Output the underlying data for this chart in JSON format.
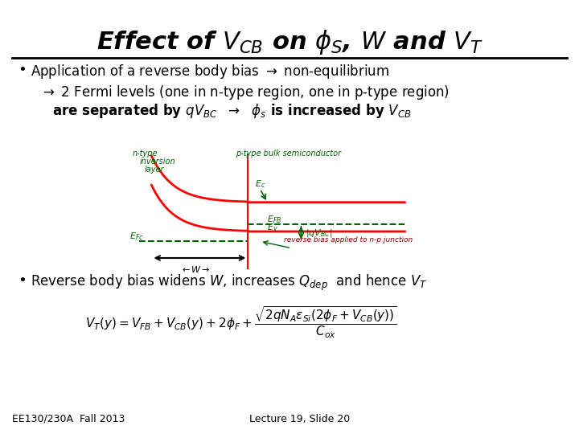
{
  "title": "Effect of $V_{CB}$ on $\\phi_S$, $W$ and $V_T$",
  "title_fontsize": 22,
  "bg_color": "#ffffff",
  "text_color": "#000000",
  "bullet1": "Application of a reverse body bias $\\rightarrow$ non-equilibrium",
  "bullet2": "$\\rightarrow$ 2 Fermi levels (one in n-type region, one in p-type region)",
  "bullet3": "are separated by $qV_{BC}$  $\\rightarrow$  $\\phi_s$ is increased by $V_{CB}$",
  "bullet4": "Reverse body bias widens $W$, increases $Q_{dep}$  and hence $V_T$",
  "formula": "$V_T(y) = V_{FB} + V_{CB}(y) + 2\\phi_F + \\dfrac{\\sqrt{2qN_A\\varepsilon_{Si}(2\\phi_F + V_{CB}(y))}}{C_{ox}}$",
  "footer_left": "EE130/230A  Fall 2013",
  "footer_right": "Lecture 19, Slide 20",
  "footer_fontsize": 9,
  "bullet_fontsize": 12,
  "formula_fontsize": 11
}
